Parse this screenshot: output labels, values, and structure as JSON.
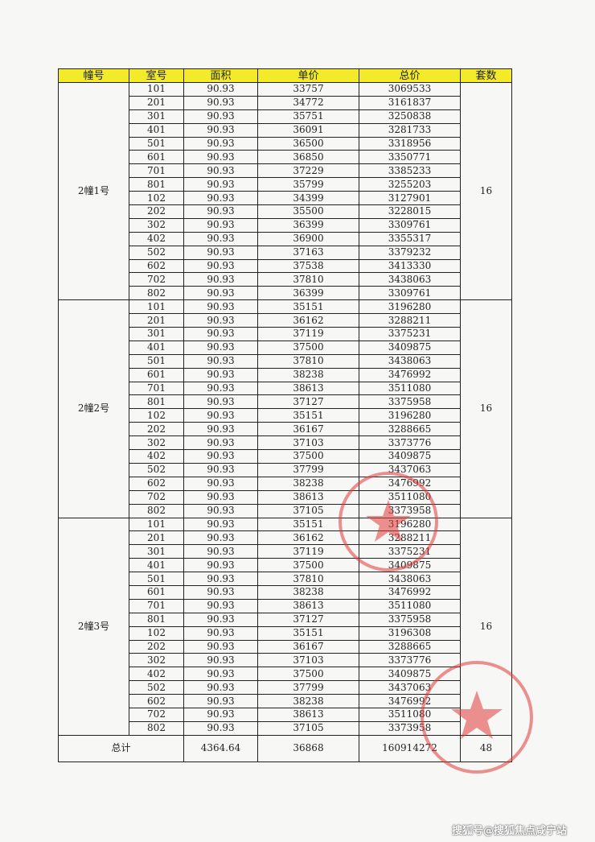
{
  "headers": [
    "幢号",
    "室号",
    "面积",
    "单价",
    "总价",
    "套数"
  ],
  "header_color": "#f3ea2a",
  "buildings": [
    {
      "name": "2幢1号",
      "count": "16",
      "rows": [
        [
          "101",
          "90.93",
          "33757",
          "3069533"
        ],
        [
          "201",
          "90.93",
          "34772",
          "3161837"
        ],
        [
          "301",
          "90.93",
          "35751",
          "3250838"
        ],
        [
          "401",
          "90.93",
          "36091",
          "3281733"
        ],
        [
          "501",
          "90.93",
          "36500",
          "3318956"
        ],
        [
          "601",
          "90.93",
          "36850",
          "3350771"
        ],
        [
          "701",
          "90.93",
          "37229",
          "3385233"
        ],
        [
          "801",
          "90.93",
          "35799",
          "3255203"
        ],
        [
          "102",
          "90.93",
          "34399",
          "3127901"
        ],
        [
          "202",
          "90.93",
          "35500",
          "3228015"
        ],
        [
          "302",
          "90.93",
          "36399",
          "3309761"
        ],
        [
          "402",
          "90.93",
          "36900",
          "3355317"
        ],
        [
          "502",
          "90.93",
          "37163",
          "3379232"
        ],
        [
          "602",
          "90.93",
          "37538",
          "3413330"
        ],
        [
          "702",
          "90.93",
          "37810",
          "3438063"
        ],
        [
          "802",
          "90.93",
          "36399",
          "3309761"
        ]
      ]
    },
    {
      "name": "2幢2号",
      "count": "16",
      "rows": [
        [
          "101",
          "90.93",
          "35151",
          "3196280"
        ],
        [
          "201",
          "90.93",
          "36162",
          "3288211"
        ],
        [
          "301",
          "90.93",
          "37119",
          "3375231"
        ],
        [
          "401",
          "90.93",
          "37500",
          "3409875"
        ],
        [
          "501",
          "90.93",
          "37810",
          "3438063"
        ],
        [
          "601",
          "90.93",
          "38238",
          "3476992"
        ],
        [
          "701",
          "90.93",
          "38613",
          "3511080"
        ],
        [
          "801",
          "90.93",
          "37127",
          "3375958"
        ],
        [
          "102",
          "90.93",
          "35151",
          "3196280"
        ],
        [
          "202",
          "90.93",
          "36167",
          "3288665"
        ],
        [
          "302",
          "90.93",
          "37103",
          "3373776"
        ],
        [
          "402",
          "90.93",
          "37500",
          "3409875"
        ],
        [
          "502",
          "90.93",
          "37799",
          "3437063"
        ],
        [
          "602",
          "90.93",
          "38238",
          "3476992"
        ],
        [
          "702",
          "90.93",
          "38613",
          "3511080"
        ],
        [
          "802",
          "90.93",
          "37105",
          "3373958"
        ]
      ]
    },
    {
      "name": "2幢3号",
      "count": "16",
      "rows": [
        [
          "101",
          "90.93",
          "35151",
          "3196280"
        ],
        [
          "201",
          "90.93",
          "36162",
          "3288211"
        ],
        [
          "301",
          "90.93",
          "37119",
          "3375231"
        ],
        [
          "401",
          "90.93",
          "37500",
          "3409875"
        ],
        [
          "501",
          "90.93",
          "37810",
          "3438063"
        ],
        [
          "601",
          "90.93",
          "38238",
          "3476992"
        ],
        [
          "701",
          "90.93",
          "38613",
          "3511080"
        ],
        [
          "801",
          "90.93",
          "37127",
          "3375958"
        ],
        [
          "102",
          "90.93",
          "35151",
          "3196308"
        ],
        [
          "202",
          "90.93",
          "36167",
          "3288665"
        ],
        [
          "302",
          "90.93",
          "37103",
          "3373776"
        ],
        [
          "402",
          "90.93",
          "37500",
          "3409875"
        ],
        [
          "502",
          "90.93",
          "37799",
          "3437063"
        ],
        [
          "602",
          "90.93",
          "38238",
          "3476992"
        ],
        [
          "702",
          "90.93",
          "38613",
          "3511080"
        ],
        [
          "802",
          "90.93",
          "37105",
          "3373958"
        ]
      ]
    }
  ],
  "total": {
    "label": "总计",
    "area": "4364.64",
    "unit_price": "36868",
    "total_price": "160914272",
    "count": "48"
  },
  "seal_color": "#e03a3a",
  "watermark": "搜狐号@搜狐焦点咸宁站"
}
